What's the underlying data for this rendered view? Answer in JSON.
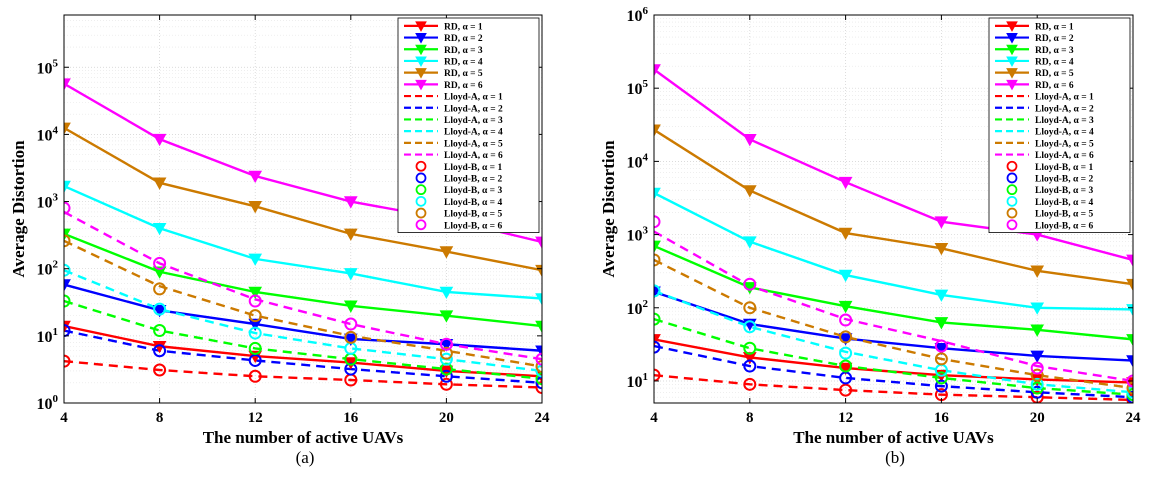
{
  "chart_data": [
    {
      "type": "line",
      "panel_label": "(a)",
      "xlabel": "The number of active UAVs",
      "ylabel": "Average Distortion",
      "x": [
        4,
        8,
        12,
        16,
        20,
        24
      ],
      "xticks": [
        "4",
        "8",
        "12",
        "16",
        "20",
        "24"
      ],
      "yscale": "log",
      "ylim": [
        1,
        600000
      ],
      "yticks": [
        {
          "base": "10",
          "exp": "0",
          "value": 1
        },
        {
          "base": "10",
          "exp": "1",
          "value": 10
        },
        {
          "base": "10",
          "exp": "2",
          "value": 100
        },
        {
          "base": "10",
          "exp": "3",
          "value": 1000
        },
        {
          "base": "10",
          "exp": "4",
          "value": 10000
        },
        {
          "base": "10",
          "exp": "5",
          "value": 100000
        }
      ],
      "grid": true,
      "legend_position": "top-right",
      "series": [
        {
          "name": "RD, α = 1",
          "style": "solid",
          "marker": "triangle-down",
          "color": "#ff0000",
          "values": [
            14,
            7,
            5,
            4,
            3,
            2.5
          ]
        },
        {
          "name": "RD, α = 2",
          "style": "solid",
          "marker": "triangle-down",
          "color": "#0000ff",
          "values": [
            58,
            24,
            15,
            9,
            7.5,
            6
          ]
        },
        {
          "name": "RD, α = 3",
          "style": "solid",
          "marker": "triangle-down",
          "color": "#00ff00",
          "values": [
            330,
            90,
            45,
            28,
            20,
            14
          ]
        },
        {
          "name": "RD, α = 4",
          "style": "solid",
          "marker": "triangle-down",
          "color": "#00ffff",
          "values": [
            1700,
            400,
            140,
            85,
            45,
            36
          ]
        },
        {
          "name": "RD, α = 5",
          "style": "solid",
          "marker": "triangle-down",
          "color": "#cc7a00",
          "values": [
            12500,
            1900,
            850,
            330,
            180,
            95
          ]
        },
        {
          "name": "RD, α = 6",
          "style": "solid",
          "marker": "triangle-down",
          "color": "#ff00ff",
          "values": [
            57000,
            8500,
            2400,
            1000,
            550,
            250
          ]
        },
        {
          "name": "Lloyd-A, α = 1",
          "style": "dashed",
          "marker": "none",
          "color": "#ff0000",
          "values": [
            4.2,
            3.1,
            2.5,
            2.2,
            1.9,
            1.7
          ]
        },
        {
          "name": "Lloyd-A, α = 2",
          "style": "dashed",
          "marker": "none",
          "color": "#0000ff",
          "values": [
            12,
            6,
            4.3,
            3.2,
            2.5,
            2.0
          ]
        },
        {
          "name": "Lloyd-A, α = 3",
          "style": "dashed",
          "marker": "none",
          "color": "#00ff00",
          "values": [
            33,
            12,
            6.5,
            4.5,
            3.2,
            2.3
          ]
        },
        {
          "name": "Lloyd-A, α = 4",
          "style": "dashed",
          "marker": "none",
          "color": "#00ffff",
          "values": [
            95,
            25,
            11,
            6.5,
            4.5,
            3.0
          ]
        },
        {
          "name": "Lloyd-A, α = 5",
          "style": "dashed",
          "marker": "none",
          "color": "#cc7a00",
          "values": [
            260,
            55,
            20,
            10,
            6,
            3.5
          ]
        },
        {
          "name": "Lloyd-A, α = 6",
          "style": "dashed",
          "marker": "none",
          "color": "#ff00ff",
          "values": [
            700,
            120,
            35,
            15,
            7.5,
            4.5
          ]
        },
        {
          "name": "Lloyd-B, α = 1",
          "style": "none",
          "marker": "circle",
          "color": "#ff0000",
          "values": [
            4.2,
            3.1,
            2.5,
            2.2,
            1.9,
            1.7
          ]
        },
        {
          "name": "Lloyd-B, α = 2",
          "style": "none",
          "marker": "circle",
          "color": "#0000ff",
          "values": [
            12,
            6,
            4.3,
            3.2,
            2.5,
            2.0
          ]
        },
        {
          "name": "Lloyd-B, α = 3",
          "style": "none",
          "marker": "circle",
          "color": "#00ff00",
          "values": [
            33,
            12,
            6.5,
            4.5,
            3.2,
            2.3
          ]
        },
        {
          "name": "Lloyd-B, α = 4",
          "style": "none",
          "marker": "circle",
          "color": "#00ffff",
          "values": [
            95,
            25,
            11,
            6.5,
            4.5,
            3.0
          ]
        },
        {
          "name": "Lloyd-B, α = 5",
          "style": "none",
          "marker": "circle",
          "color": "#cc7a00",
          "values": [
            260,
            50,
            20,
            9.5,
            5.5,
            3.5
          ]
        },
        {
          "name": "Lloyd-B, α = 6",
          "style": "none",
          "marker": "circle",
          "color": "#ff00ff",
          "values": [
            800,
            120,
            33,
            15,
            7.5,
            4.5
          ]
        }
      ]
    },
    {
      "type": "line",
      "panel_label": "(b)",
      "xlabel": "The number of active UAVs",
      "ylabel": "Average Distortion",
      "x": [
        4,
        8,
        12,
        16,
        20,
        24
      ],
      "xticks": [
        "4",
        "8",
        "12",
        "16",
        "20",
        "24"
      ],
      "yscale": "log",
      "ylim": [
        5,
        1000000
      ],
      "yticks": [
        {
          "base": "10",
          "exp": "1",
          "value": 10
        },
        {
          "base": "10",
          "exp": "2",
          "value": 100
        },
        {
          "base": "10",
          "exp": "3",
          "value": 1000
        },
        {
          "base": "10",
          "exp": "4",
          "value": 10000
        },
        {
          "base": "10",
          "exp": "5",
          "value": 100000
        },
        {
          "base": "10",
          "exp": "6",
          "value": 1000000
        }
      ],
      "grid": true,
      "legend_position": "top-right",
      "series": [
        {
          "name": "RD, α = 1",
          "style": "solid",
          "marker": "triangle-down",
          "color": "#ff0000",
          "values": [
            37,
            21,
            15,
            12,
            10.5,
            9.5
          ]
        },
        {
          "name": "RD, α = 2",
          "style": "solid",
          "marker": "triangle-down",
          "color": "#0000ff",
          "values": [
            165,
            60,
            38,
            28,
            22,
            19
          ]
        },
        {
          "name": "RD, α = 3",
          "style": "solid",
          "marker": "triangle-down",
          "color": "#00ff00",
          "values": [
            700,
            190,
            105,
            63,
            50,
            37
          ]
        },
        {
          "name": "RD, α = 4",
          "style": "solid",
          "marker": "triangle-down",
          "color": "#00ffff",
          "values": [
            3700,
            800,
            280,
            150,
            100,
            95
          ]
        },
        {
          "name": "RD, α = 5",
          "style": "solid",
          "marker": "triangle-down",
          "color": "#cc7a00",
          "values": [
            27000,
            4000,
            1050,
            650,
            320,
            210
          ]
        },
        {
          "name": "RD, α = 6",
          "style": "solid",
          "marker": "triangle-down",
          "color": "#ff00ff",
          "values": [
            180000,
            20000,
            5200,
            1500,
            1000,
            450
          ]
        },
        {
          "name": "Lloyd-A, α = 1",
          "style": "dashed",
          "marker": "none",
          "color": "#ff0000",
          "values": [
            12,
            9,
            7.5,
            6.5,
            6,
            5.5
          ]
        },
        {
          "name": "Lloyd-A, α = 2",
          "style": "dashed",
          "marker": "none",
          "color": "#0000ff",
          "values": [
            30,
            16,
            11,
            8.5,
            7,
            6
          ]
        },
        {
          "name": "Lloyd-A, α = 3",
          "style": "dashed",
          "marker": "none",
          "color": "#00ff00",
          "values": [
            70,
            28,
            16,
            11,
            8,
            6.5
          ]
        },
        {
          "name": "Lloyd-A, α = 4",
          "style": "dashed",
          "marker": "none",
          "color": "#00ffff",
          "values": [
            170,
            55,
            25,
            14,
            9,
            7
          ]
        },
        {
          "name": "Lloyd-A, α = 5",
          "style": "dashed",
          "marker": "none",
          "color": "#cc7a00",
          "values": [
            450,
            100,
            40,
            20,
            12,
            8
          ]
        },
        {
          "name": "Lloyd-A, α = 6",
          "style": "dashed",
          "marker": "none",
          "color": "#ff00ff",
          "values": [
            1100,
            200,
            70,
            35,
            16,
            10
          ]
        },
        {
          "name": "Lloyd-B, α = 1",
          "style": "none",
          "marker": "circle",
          "color": "#ff0000",
          "values": [
            12,
            9,
            7.5,
            6.5,
            6,
            5.5
          ]
        },
        {
          "name": "Lloyd-B, α = 2",
          "style": "none",
          "marker": "circle",
          "color": "#0000ff",
          "values": [
            29,
            16,
            11,
            8.5,
            7,
            6
          ]
        },
        {
          "name": "Lloyd-B, α = 3",
          "style": "none",
          "marker": "circle",
          "color": "#00ff00",
          "values": [
            70,
            28,
            16,
            11,
            8,
            6.5
          ]
        },
        {
          "name": "Lloyd-B, α = 4",
          "style": "none",
          "marker": "circle",
          "color": "#00ffff",
          "values": [
            170,
            55,
            24,
            14,
            9,
            7
          ]
        },
        {
          "name": "Lloyd-B, α = 5",
          "style": "none",
          "marker": "circle",
          "color": "#cc7a00",
          "values": [
            450,
            100,
            40,
            20,
            12,
            8
          ]
        },
        {
          "name": "Lloyd-B, α = 6",
          "style": "none",
          "marker": "circle",
          "color": "#ff00ff",
          "values": [
            1500,
            210,
            68,
            30,
            15,
            10
          ]
        }
      ]
    }
  ]
}
